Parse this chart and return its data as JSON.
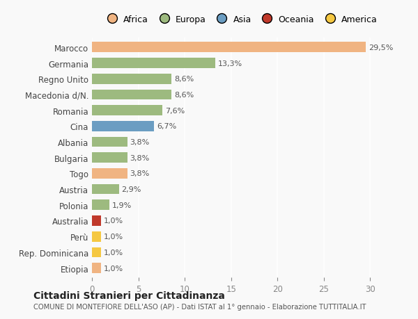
{
  "categories": [
    "Marocco",
    "Germania",
    "Regno Unito",
    "Macedonia d/N.",
    "Romania",
    "Cina",
    "Albania",
    "Bulgaria",
    "Togo",
    "Austria",
    "Polonia",
    "Australia",
    "Perù",
    "Rep. Dominicana",
    "Etiopia"
  ],
  "values": [
    29.5,
    13.3,
    8.6,
    8.6,
    7.6,
    6.7,
    3.8,
    3.8,
    3.8,
    2.9,
    1.9,
    1.0,
    1.0,
    1.0,
    1.0
  ],
  "labels": [
    "29,5%",
    "13,3%",
    "8,6%",
    "8,6%",
    "7,6%",
    "6,7%",
    "3,8%",
    "3,8%",
    "3,8%",
    "2,9%",
    "1,9%",
    "1,0%",
    "1,0%",
    "1,0%",
    "1,0%"
  ],
  "colors": [
    "#f0b482",
    "#9dba7f",
    "#9dba7f",
    "#9dba7f",
    "#9dba7f",
    "#6b9dc2",
    "#9dba7f",
    "#9dba7f",
    "#f0b482",
    "#9dba7f",
    "#9dba7f",
    "#c0392b",
    "#f5c842",
    "#f5c842",
    "#f0b482"
  ],
  "continent_names": [
    "Africa",
    "Europa",
    "Asia",
    "Oceania",
    "America"
  ],
  "continent_colors": [
    "#f0b482",
    "#9dba7f",
    "#6b9dc2",
    "#c0392b",
    "#f5c842"
  ],
  "title": "Cittadini Stranieri per Cittadinanza",
  "subtitle": "COMUNE DI MONTEFIORE DELL'ASO (AP) - Dati ISTAT al 1° gennaio - Elaborazione TUTTITALIA.IT",
  "xlim": [
    0,
    32
  ],
  "xticks": [
    0,
    5,
    10,
    15,
    20,
    25,
    30
  ],
  "bg_color": "#f9f9f9",
  "bar_height": 0.65
}
